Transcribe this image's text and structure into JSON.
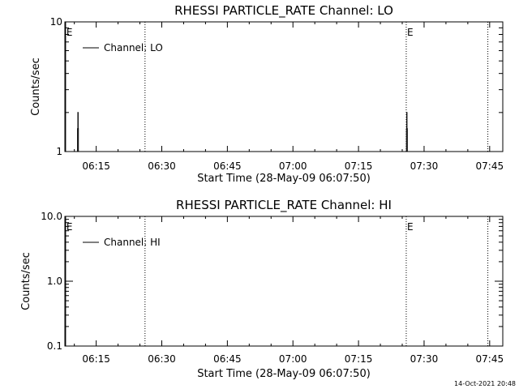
{
  "footer": {
    "timestamp": "14-Oct-2021 20:48"
  },
  "chart_data": [
    {
      "type": "line",
      "title": "RHESSI PARTICLE_RATE Channel: LO",
      "xlabel": "Start Time (28-May-09 06:07:50)",
      "ylabel": "Counts/sec",
      "yscale": "log",
      "ylim": [
        1,
        10
      ],
      "xlim": [
        "06:07:50",
        "07:48:00"
      ],
      "y_ticks": [
        {
          "value": 1,
          "label": "1"
        },
        {
          "value": 10,
          "label": "10"
        }
      ],
      "x_ticks": [
        "06:15",
        "06:30",
        "06:45",
        "07:00",
        "07:15",
        "07:30",
        "07:45"
      ],
      "legend": {
        "label": "Channel: LO",
        "placement": "top-left"
      },
      "grid": false,
      "vlines": [
        {
          "time": "06:08:00",
          "label": "E",
          "style": "solid"
        },
        {
          "time": "06:26:10",
          "label": "",
          "style": "dotted"
        },
        {
          "time": "07:25:55",
          "label": "E",
          "style": "dotted"
        },
        {
          "time": "07:44:35",
          "label": "",
          "style": "dotted"
        }
      ],
      "series": [
        {
          "name": "Channel: LO",
          "x": [
            "06:08:00",
            "06:10:40",
            "06:10:44",
            "06:10:48",
            "06:10:52",
            "06:10:56",
            "06:11:00",
            "06:11:04",
            "07:25:50",
            "07:25:54",
            "07:25:58",
            "07:26:02",
            "07:26:06",
            "07:26:10",
            "07:26:14",
            "07:26:18"
          ],
          "y": [
            1,
            1,
            1.5,
            2,
            1.5,
            1,
            1,
            1,
            1,
            1,
            1.5,
            2,
            1.5,
            1,
            1,
            1
          ]
        }
      ]
    },
    {
      "type": "line",
      "title": "RHESSI PARTICLE_RATE Channel: HI",
      "xlabel": "Start Time (28-May-09 06:07:50)",
      "ylabel": "Counts/sec",
      "yscale": "log",
      "ylim": [
        0.1,
        10
      ],
      "xlim": [
        "06:07:50",
        "07:48:00"
      ],
      "y_ticks": [
        {
          "value": 0.1,
          "label": "0.1"
        },
        {
          "value": 1,
          "label": "1.0"
        },
        {
          "value": 10,
          "label": "10.0"
        }
      ],
      "x_ticks": [
        "06:15",
        "06:30",
        "06:45",
        "07:00",
        "07:15",
        "07:30",
        "07:45"
      ],
      "legend": {
        "label": "Channel: HI",
        "placement": "top-left"
      },
      "grid": false,
      "vlines": [
        {
          "time": "06:08:00",
          "label": "E",
          "style": "solid"
        },
        {
          "time": "06:26:10",
          "label": "",
          "style": "dotted"
        },
        {
          "time": "07:25:55",
          "label": "E",
          "style": "dotted"
        },
        {
          "time": "07:44:35",
          "label": "",
          "style": "dotted"
        }
      ],
      "series": [
        {
          "name": "Channel: HI",
          "x": [],
          "y": []
        }
      ]
    }
  ]
}
